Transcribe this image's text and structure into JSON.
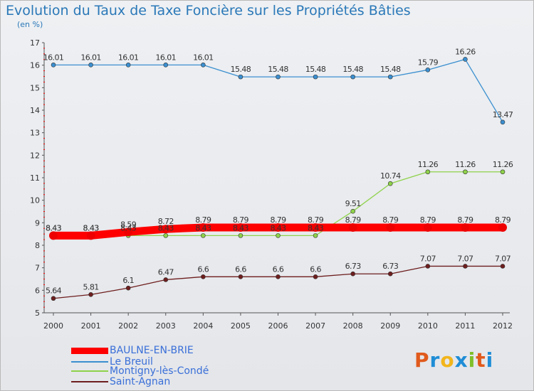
{
  "chart_data": {
    "type": "line",
    "title": "Evolution du Taux de Taxe Foncière sur les Propriétés Bâties",
    "ylabel": "(en %)",
    "xlabel": "",
    "x": [
      "2000",
      "2001",
      "2002",
      "2003",
      "2004",
      "2005",
      "2006",
      "2007",
      "2008",
      "2009",
      "2010",
      "2011",
      "2012"
    ],
    "ylim": [
      5,
      17
    ],
    "yticks": [
      "5",
      "6",
      "7",
      "8",
      "9",
      "10",
      "11",
      "12",
      "13",
      "14",
      "15",
      "16",
      "17"
    ],
    "grid": false,
    "legend_position": "bottom-left",
    "series": [
      {
        "name": "BAULNE-EN-BRIE",
        "color": "#ff0000",
        "values": [
          8.43,
          8.43,
          8.59,
          8.72,
          8.79,
          8.79,
          8.79,
          8.79,
          8.79,
          8.79,
          8.79,
          8.79,
          8.79
        ],
        "labels": [
          "8.43",
          "8.43",
          "8.59",
          "8.72",
          "8.79",
          "8.79",
          "8.79",
          "8.79",
          "8.79",
          "8.79",
          "8.79",
          "8.79",
          "8.79"
        ]
      },
      {
        "name": "Le Breuil",
        "color": "#3b8fd0",
        "values": [
          16.01,
          16.01,
          16.01,
          16.01,
          16.01,
          15.48,
          15.48,
          15.48,
          15.48,
          15.48,
          15.79,
          16.26,
          13.47
        ],
        "labels": [
          "16.01",
          "16.01",
          "16.01",
          "16.01",
          "16.01",
          "15.48",
          "15.48",
          "15.48",
          "15.48",
          "15.48",
          "15.79",
          "16.26",
          "13.47"
        ]
      },
      {
        "name": "Montigny-lès-Condé",
        "color": "#8fd24a",
        "values": [
          8.43,
          8.43,
          8.43,
          8.43,
          8.43,
          8.43,
          8.43,
          8.43,
          9.51,
          10.74,
          11.26,
          11.26,
          11.26
        ],
        "labels": [
          "8.43",
          "8.43",
          "8.43",
          "8.43",
          "8.43",
          "8.43",
          "8.43",
          "8.43",
          "9.51",
          "10.74",
          "11.26",
          "11.26",
          "11.26"
        ]
      },
      {
        "name": "Saint-Agnan",
        "color": "#6e1e1e",
        "values": [
          5.64,
          5.81,
          6.1,
          6.47,
          6.6,
          6.6,
          6.6,
          6.6,
          6.73,
          6.73,
          7.07,
          7.07,
          7.07
        ],
        "labels": [
          "5.64",
          "5.81",
          "6.1",
          "6.47",
          "6.6",
          "6.6",
          "6.6",
          "6.6",
          "6.73",
          "6.73",
          "7.07",
          "7.07",
          "7.07"
        ]
      }
    ]
  },
  "logo": {
    "letters": [
      "P",
      "r",
      "o",
      "x",
      "i",
      "t",
      "i"
    ],
    "colors": [
      "#e05a1c",
      "#1f8dd6",
      "#f2b51b",
      "#1f8dd6",
      "#7fbf2a",
      "#e05a1c",
      "#1f8dd6"
    ]
  }
}
